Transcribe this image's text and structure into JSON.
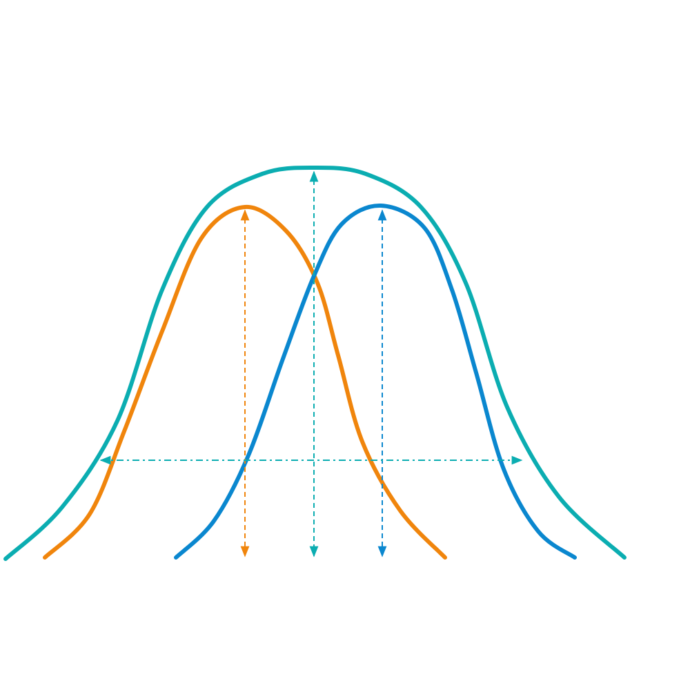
{
  "diagram": {
    "colors": {
      "combined": "#0badb1",
      "left": "#f0850c",
      "right": "#0a87cf"
    },
    "curves": [
      {
        "id": "combined-distribution",
        "color_key": "combined"
      },
      {
        "id": "left-distribution",
        "color_key": "left"
      },
      {
        "id": "right-distribution",
        "color_key": "right"
      }
    ],
    "icons": [
      "double-arrow-icon"
    ]
  }
}
